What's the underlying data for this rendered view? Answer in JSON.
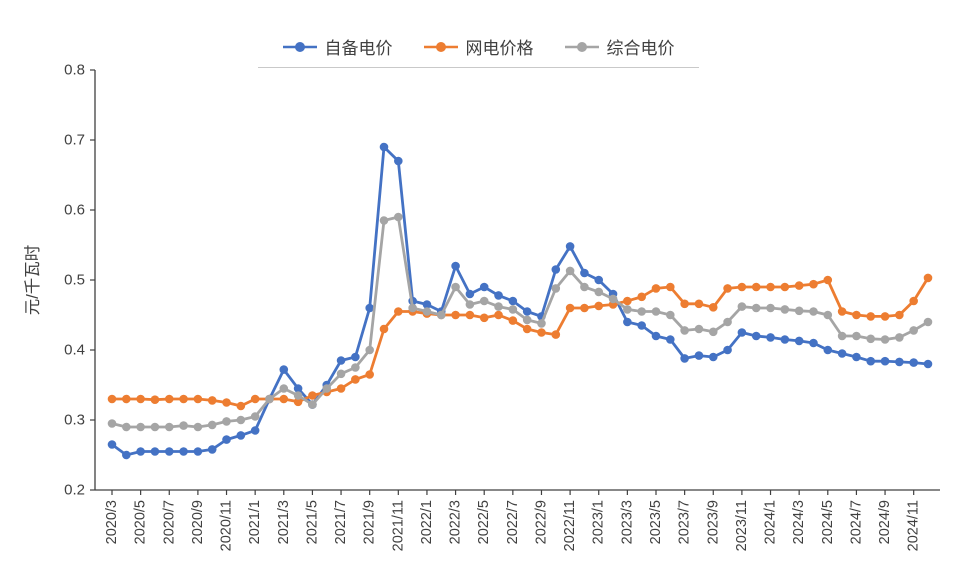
{
  "chart_data": {
    "type": "line",
    "title": "",
    "xlabel": "",
    "ylabel": "元/千瓦时",
    "ylim": [
      0.2,
      0.8
    ],
    "yticks": [
      0.2,
      0.3,
      0.4,
      0.5,
      0.6,
      0.7,
      0.8
    ],
    "x_tick_every": 2,
    "grid": false,
    "legend_position": "top",
    "marker": "circle",
    "x": [
      "2020/3",
      "2020/4",
      "2020/5",
      "2020/6",
      "2020/7",
      "2020/8",
      "2020/9",
      "2020/10",
      "2020/11",
      "2020/12",
      "2021/1",
      "2021/2",
      "2021/3",
      "2021/4",
      "2021/5",
      "2021/6",
      "2021/7",
      "2021/8",
      "2021/9",
      "2021/10",
      "2021/11",
      "2021/12",
      "2022/1",
      "2022/2",
      "2022/3",
      "2022/4",
      "2022/5",
      "2022/6",
      "2022/7",
      "2022/8",
      "2022/9",
      "2022/10",
      "2022/11",
      "2022/12",
      "2023/1",
      "2023/2",
      "2023/3",
      "2023/4",
      "2023/5",
      "2023/6",
      "2023/7",
      "2023/8",
      "2023/9",
      "2023/10",
      "2023/11",
      "2023/12",
      "2024/1",
      "2024/2",
      "2024/3",
      "2024/4",
      "2024/5",
      "2024/6",
      "2024/7",
      "2024/8",
      "2024/9",
      "2024/10",
      "2024/11",
      "2024/12"
    ],
    "series": [
      {
        "name": "自备电价",
        "color": "#4472C4",
        "values": [
          0.265,
          0.25,
          0.255,
          0.255,
          0.255,
          0.255,
          0.255,
          0.258,
          0.272,
          0.278,
          0.285,
          0.33,
          0.372,
          0.345,
          0.322,
          0.35,
          0.385,
          0.39,
          0.46,
          0.69,
          0.67,
          0.47,
          0.465,
          0.455,
          0.52,
          0.48,
          0.49,
          0.478,
          0.47,
          0.455,
          0.448,
          0.515,
          0.548,
          0.51,
          0.5,
          0.48,
          0.44,
          0.435,
          0.42,
          0.415,
          0.388,
          0.392,
          0.39,
          0.4,
          0.425,
          0.42,
          0.418,
          0.415,
          0.413,
          0.41,
          0.4,
          0.395,
          0.39,
          0.384,
          0.384,
          0.383,
          0.382,
          0.38
        ]
      },
      {
        "name": "网电价格",
        "color": "#ED7D31",
        "values": [
          0.33,
          0.33,
          0.33,
          0.329,
          0.33,
          0.33,
          0.33,
          0.328,
          0.325,
          0.32,
          0.33,
          0.33,
          0.33,
          0.326,
          0.335,
          0.34,
          0.345,
          0.358,
          0.365,
          0.43,
          0.455,
          0.455,
          0.452,
          0.45,
          0.45,
          0.45,
          0.446,
          0.45,
          0.442,
          0.43,
          0.425,
          0.422,
          0.46,
          0.46,
          0.463,
          0.465,
          0.47,
          0.476,
          0.488,
          0.49,
          0.466,
          0.466,
          0.461,
          0.488,
          0.49,
          0.49,
          0.49,
          0.49,
          0.492,
          0.494,
          0.5,
          0.455,
          0.45,
          0.448,
          0.448,
          0.45,
          0.47,
          0.503
        ]
      },
      {
        "name": "综合电价",
        "color": "#A5A5A5",
        "values": [
          0.295,
          0.29,
          0.29,
          0.29,
          0.29,
          0.292,
          0.29,
          0.293,
          0.298,
          0.3,
          0.305,
          0.33,
          0.345,
          0.335,
          0.322,
          0.345,
          0.366,
          0.375,
          0.4,
          0.585,
          0.59,
          0.46,
          0.455,
          0.45,
          0.49,
          0.465,
          0.47,
          0.462,
          0.458,
          0.443,
          0.438,
          0.488,
          0.513,
          0.49,
          0.483,
          0.473,
          0.458,
          0.455,
          0.455,
          0.45,
          0.428,
          0.43,
          0.426,
          0.44,
          0.462,
          0.46,
          0.46,
          0.458,
          0.456,
          0.455,
          0.45,
          0.42,
          0.42,
          0.416,
          0.415,
          0.418,
          0.428,
          0.44
        ]
      }
    ]
  },
  "colors": {
    "axis": "#404040",
    "tick_text": "#404040",
    "legend_text": "#404040"
  }
}
